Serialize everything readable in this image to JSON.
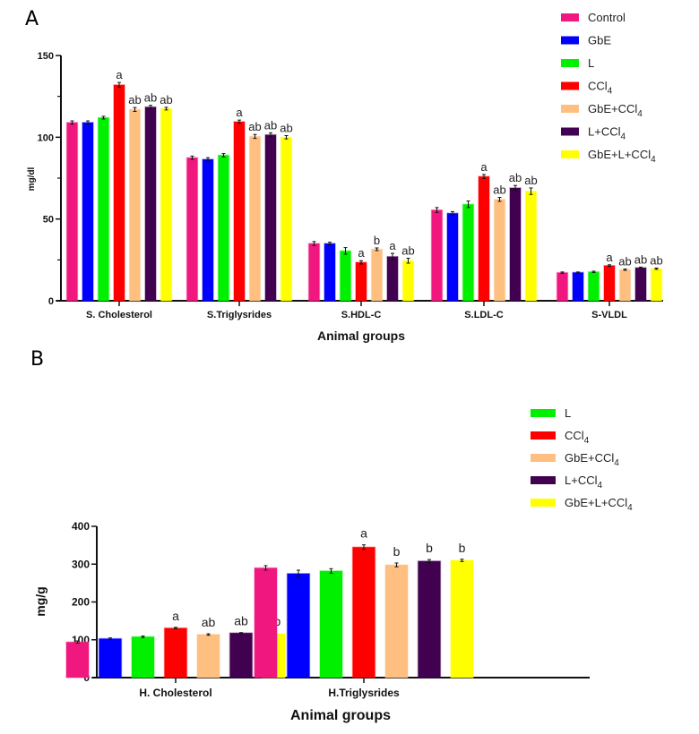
{
  "figure": {
    "panels": [
      "A",
      "B"
    ]
  },
  "groups": [
    {
      "name": "Control",
      "base": "Control",
      "sub": "",
      "color": "#F0187E"
    },
    {
      "name": "GbE",
      "base": "GbE",
      "sub": "",
      "color": "#0000FF"
    },
    {
      "name": "L",
      "base": "L",
      "sub": "",
      "color": "#00F000"
    },
    {
      "name": "CCl4",
      "base": "CCl",
      "sub": "4",
      "color": "#FF0000"
    },
    {
      "name": "GbE+CCl4",
      "base": "GbE+CCl",
      "sub": "4",
      "color": "#FFBF80"
    },
    {
      "name": "L+CCl4",
      "base": "L+CCl",
      "sub": "4",
      "color": "#420050"
    },
    {
      "name": "GbE+L+CCl4",
      "base": "GbE+L+CCl",
      "sub": "4",
      "color": "#FFFF00"
    }
  ],
  "chart_data": [
    {
      "panel": "A",
      "type": "bar",
      "title": "",
      "xlabel": "Animal groups",
      "ylabel": "mg/dl",
      "ylim": [
        0,
        150
      ],
      "yticks": [
        0,
        50,
        100,
        150
      ],
      "grid": false,
      "legend": {
        "placement": "top-right",
        "entries": [
          "Control",
          "GbE",
          "L",
          "CCl4",
          "GbE+CCl4",
          "L+CCl4",
          "GbE+L+CCl4"
        ]
      },
      "categories": [
        "S. Cholesterol",
        "S.Triglysrides",
        "S.HDL-C",
        "S.LDL-C",
        "S-VLDL"
      ],
      "series": [
        {
          "name": "Control",
          "values": [
            109,
            87.5,
            35,
            55.5,
            17.2
          ],
          "errors": [
            1.0,
            1.0,
            1.2,
            1.5,
            0.4
          ],
          "labels": [
            "",
            "",
            "",
            "",
            ""
          ]
        },
        {
          "name": "GbE",
          "values": [
            109,
            86.5,
            35,
            53.5,
            17.3
          ],
          "errors": [
            1.0,
            1.0,
            0.8,
            1.0,
            0.3
          ],
          "labels": [
            "",
            "",
            "",
            "",
            ""
          ]
        },
        {
          "name": "L",
          "values": [
            112,
            89,
            30.5,
            59,
            17.7
          ],
          "errors": [
            0.8,
            1.0,
            2.0,
            2.0,
            0.4
          ],
          "labels": [
            "",
            "",
            "",
            "",
            ""
          ]
        },
        {
          "name": "CCl4",
          "values": [
            132,
            109.5,
            23.5,
            76,
            21.5
          ],
          "errors": [
            1.5,
            1.0,
            1.0,
            1.2,
            0.5
          ],
          "labels": [
            "a",
            "a",
            "a",
            "a",
            "a"
          ]
        },
        {
          "name": "GbE+CCl4",
          "values": [
            117,
            100.5,
            31.5,
            62,
            19
          ],
          "errors": [
            1.2,
            1.2,
            0.8,
            1.2,
            0.4
          ],
          "labels": [
            "ab",
            "ab",
            "b",
            "ab",
            "ab"
          ]
        },
        {
          "name": "L+CCl4",
          "values": [
            118.5,
            101.5,
            27,
            69,
            20.2
          ],
          "errors": [
            1.0,
            1.2,
            2.0,
            1.5,
            0.4
          ],
          "labels": [
            "ab",
            "ab",
            "a",
            "ab",
            "ab"
          ]
        },
        {
          "name": "GbE+L+CCl4",
          "values": [
            117.5,
            100,
            24.5,
            67,
            19.6
          ],
          "errors": [
            0.8,
            1.0,
            1.5,
            2.0,
            0.4
          ],
          "labels": [
            "ab",
            "ab",
            "ab",
            "ab",
            "ab"
          ]
        }
      ]
    },
    {
      "panel": "B",
      "type": "bar",
      "title": "",
      "xlabel": "Animal groups",
      "ylabel": "mg/g",
      "ylim": [
        0,
        400
      ],
      "yticks": [
        0,
        100,
        200,
        300,
        400
      ],
      "grid": false,
      "legend": {
        "placement": "top-right",
        "entries": [
          "L",
          "CCl4",
          "GbE+CCl4",
          "L+CCl4",
          "GbE+L+CCl4"
        ]
      },
      "categories": [
        "H. Cholesterol",
        "H.Triglysrides"
      ],
      "series": [
        {
          "name": "Control",
          "values": [
            94,
            290
          ],
          "errors": [
            3,
            6
          ],
          "labels": [
            "",
            ""
          ]
        },
        {
          "name": "GbE",
          "values": [
            103,
            275
          ],
          "errors": [
            2,
            9
          ],
          "labels": [
            "",
            ""
          ]
        },
        {
          "name": "L",
          "values": [
            108,
            282
          ],
          "errors": [
            2,
            6
          ],
          "labels": [
            "",
            ""
          ]
        },
        {
          "name": "CCl4",
          "values": [
            131,
            345
          ],
          "errors": [
            2,
            6
          ],
          "labels": [
            "a",
            "a"
          ]
        },
        {
          "name": "GbE+CCl4",
          "values": [
            114,
            298
          ],
          "errors": [
            2,
            5
          ],
          "labels": [
            "ab",
            "b"
          ]
        },
        {
          "name": "L+CCl4",
          "values": [
            118,
            308
          ],
          "errors": [
            1,
            4
          ],
          "labels": [
            "ab",
            "b"
          ]
        },
        {
          "name": "GbE+L+CCl4",
          "values": [
            116,
            310
          ],
          "errors": [
            2,
            3
          ],
          "labels": [
            "ab",
            "b"
          ]
        }
      ]
    }
  ]
}
